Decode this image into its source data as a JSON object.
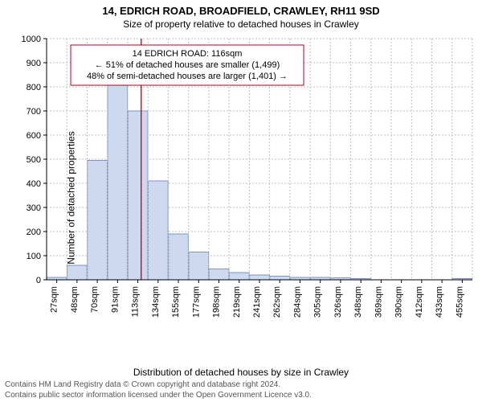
{
  "title_main": "14, EDRICH ROAD, BROADFIELD, CRAWLEY, RH11 9SD",
  "title_sub": "Size of property relative to detached houses in Crawley",
  "ylabel": "Number of detached properties",
  "xlabel": "Distribution of detached houses by size in Crawley",
  "footer_line1": "Contains HM Land Registry data © Crown copyright and database right 2024.",
  "footer_line2": "Contains public sector information licensed under the Open Government Licence v3.0.",
  "chart": {
    "type": "histogram",
    "plot_bg": "#ffffff",
    "axis_color": "#000000",
    "grid_color": "#bfbfbf",
    "grid_dash": "2,2",
    "bar_fill": "#cdd9ee",
    "bar_stroke": "#7f93c5",
    "marker_line_color": "#d01028",
    "ylim": [
      0,
      1000
    ],
    "ytick_step": 100,
    "x_start": 27,
    "x_step": 21.375,
    "x_count": 21,
    "x_unit": "sqm",
    "bars": [
      10,
      60,
      495,
      810,
      700,
      410,
      190,
      115,
      45,
      30,
      20,
      15,
      10,
      10,
      8,
      5,
      0,
      0,
      0,
      0,
      5
    ],
    "marker_value": 116,
    "annotation": {
      "box_stroke": "#b00020",
      "lines": [
        "14 EDRICH ROAD: 116sqm",
        "← 51% of detached houses are smaller (1,499)",
        "48% of semi-detached houses are larger (1,401) →"
      ]
    },
    "title_fontsize": 13,
    "label_fontsize": 12,
    "tick_fontsize": 11
  }
}
